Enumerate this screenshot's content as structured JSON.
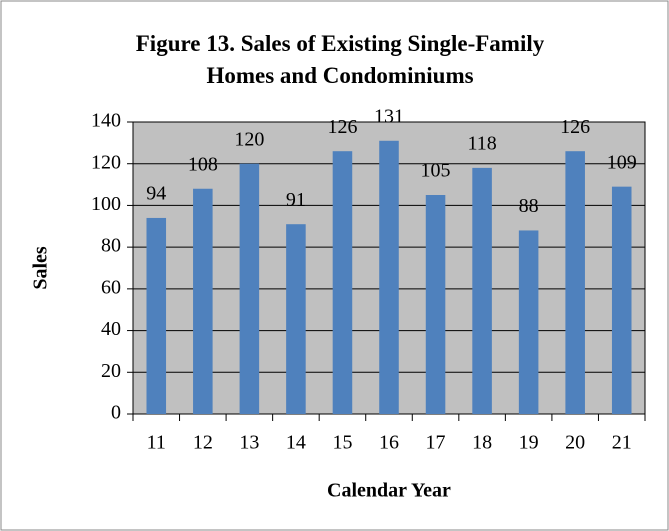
{
  "chart_data": {
    "type": "bar",
    "title": "Figure 13.  Sales of Existing Single-Family Homes and Condominiums",
    "x_label": "Calendar Year",
    "y_label": "Sales",
    "categories": [
      "11",
      "12",
      "13",
      "14",
      "15",
      "16",
      "17",
      "18",
      "19",
      "20",
      "21"
    ],
    "values": [
      94,
      108,
      120,
      91,
      126,
      131,
      105,
      118,
      88,
      126,
      109
    ],
    "color": "#4f81bd",
    "plot_background": "#c0c0c0",
    "ylim": [
      0,
      140
    ],
    "yticks": [
      0,
      20,
      40,
      60,
      80,
      100,
      120,
      140
    ],
    "grid": true,
    "data_labels": true
  }
}
